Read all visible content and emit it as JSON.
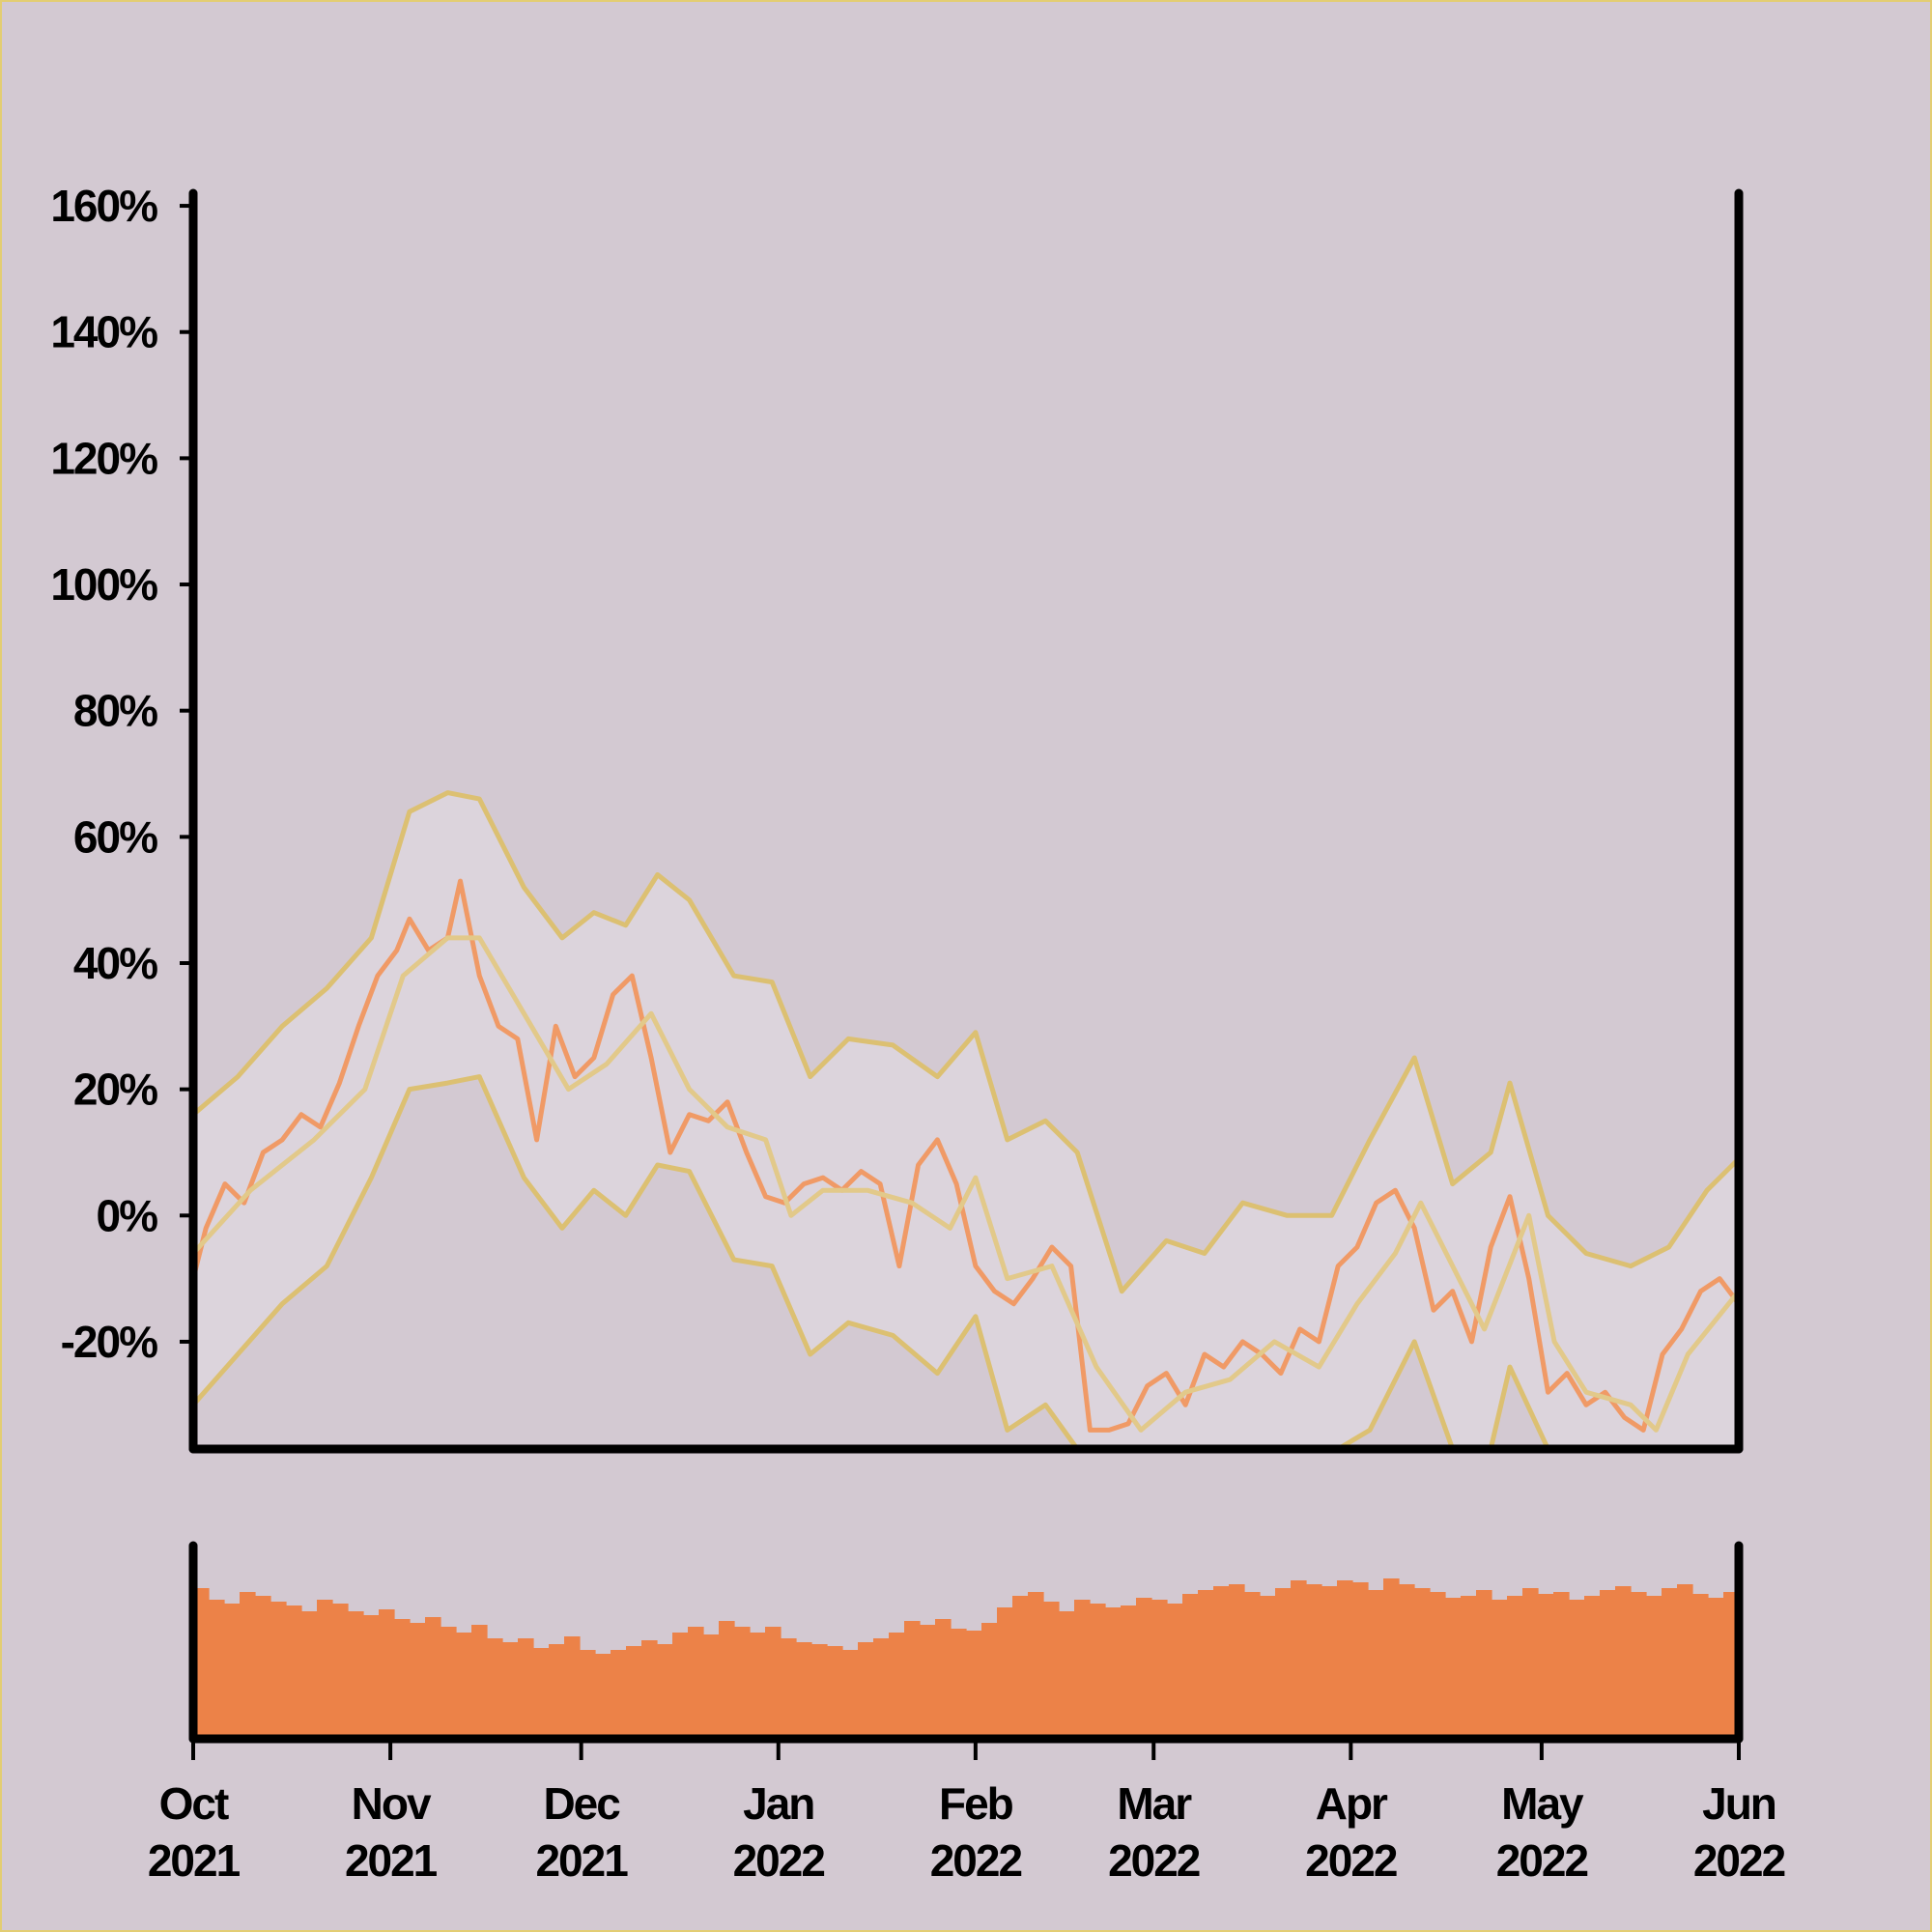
{
  "colors": {
    "background": "#d3c9d2",
    "frame": "#e3cd72",
    "price": "#f09a66",
    "band": "#dcc072",
    "band_fill": "#dcd4dc",
    "volume": "#ec8248",
    "axis": "#000000"
  },
  "chart_data": {
    "type": "line",
    "title": "",
    "xlabel": "",
    "ylabel": "",
    "ylim": [
      -0.37,
      1.62
    ],
    "y_ticks": [
      {
        "value": -0.2,
        "label": "-20%"
      },
      {
        "value": 0.0,
        "label": "0%"
      },
      {
        "value": 0.2,
        "label": "20%"
      },
      {
        "value": 0.4,
        "label": "40%"
      },
      {
        "value": 0.6,
        "label": "60%"
      },
      {
        "value": 0.8,
        "label": "80%"
      },
      {
        "value": 1.0,
        "label": "100%"
      },
      {
        "value": 1.2,
        "label": "120%"
      },
      {
        "value": 1.4,
        "label": "140%"
      },
      {
        "value": 1.6,
        "label": "160%"
      }
    ],
    "x_range": [
      "2021-10-01",
      "2022-06-01"
    ],
    "x_ticks": [
      {
        "date": "2021-10-01",
        "month": "Oct",
        "year": "2021"
      },
      {
        "date": "2021-11-01",
        "month": "Nov",
        "year": "2021"
      },
      {
        "date": "2021-12-01",
        "month": "Dec",
        "year": "2021"
      },
      {
        "date": "2022-01-01",
        "month": "Jan",
        "year": "2022"
      },
      {
        "date": "2022-02-01",
        "month": "Feb",
        "year": "2022"
      },
      {
        "date": "2022-03-01",
        "month": "Mar",
        "year": "2022"
      },
      {
        "date": "2022-04-01",
        "month": "Apr",
        "year": "2022"
      },
      {
        "date": "2022-05-01",
        "month": "May",
        "year": "2022"
      },
      {
        "date": "2022-06-01",
        "month": "Jun",
        "year": "2022"
      }
    ],
    "series": [
      {
        "role": "return",
        "points": [
          [
            "2021-10-01",
            -0.1
          ],
          [
            "2021-10-03",
            -0.02
          ],
          [
            "2021-10-06",
            0.05
          ],
          [
            "2021-10-09",
            0.02
          ],
          [
            "2021-10-12",
            0.1
          ],
          [
            "2021-10-15",
            0.12
          ],
          [
            "2021-10-18",
            0.16
          ],
          [
            "2021-10-21",
            0.14
          ],
          [
            "2021-10-24",
            0.21
          ],
          [
            "2021-10-27",
            0.3
          ],
          [
            "2021-10-30",
            0.38
          ],
          [
            "2021-11-02",
            0.42
          ],
          [
            "2021-11-04",
            0.47
          ],
          [
            "2021-11-07",
            0.42
          ],
          [
            "2021-11-10",
            0.44
          ],
          [
            "2021-11-12",
            0.53
          ],
          [
            "2021-11-15",
            0.38
          ],
          [
            "2021-11-18",
            0.3
          ],
          [
            "2021-11-21",
            0.28
          ],
          [
            "2021-11-24",
            0.12
          ],
          [
            "2021-11-27",
            0.3
          ],
          [
            "2021-11-30",
            0.22
          ],
          [
            "2021-12-03",
            0.25
          ],
          [
            "2021-12-06",
            0.35
          ],
          [
            "2021-12-09",
            0.38
          ],
          [
            "2021-12-12",
            0.25
          ],
          [
            "2021-12-15",
            0.1
          ],
          [
            "2021-12-18",
            0.16
          ],
          [
            "2021-12-21",
            0.15
          ],
          [
            "2021-12-24",
            0.18
          ],
          [
            "2021-12-27",
            0.1
          ],
          [
            "2021-12-30",
            0.03
          ],
          [
            "2022-01-02",
            0.02
          ],
          [
            "2022-01-05",
            0.05
          ],
          [
            "2022-01-08",
            0.06
          ],
          [
            "2022-01-11",
            0.04
          ],
          [
            "2022-01-14",
            0.07
          ],
          [
            "2022-01-17",
            0.05
          ],
          [
            "2022-01-20",
            -0.08
          ],
          [
            "2022-01-23",
            0.08
          ],
          [
            "2022-01-26",
            0.12
          ],
          [
            "2022-01-29",
            0.05
          ],
          [
            "2022-02-01",
            -0.08
          ],
          [
            "2022-02-04",
            -0.12
          ],
          [
            "2022-02-07",
            -0.14
          ],
          [
            "2022-02-10",
            -0.1
          ],
          [
            "2022-02-13",
            -0.05
          ],
          [
            "2022-02-16",
            -0.08
          ],
          [
            "2022-02-19",
            -0.34
          ],
          [
            "2022-02-22",
            -0.34
          ],
          [
            "2022-02-25",
            -0.33
          ],
          [
            "2022-02-28",
            -0.27
          ],
          [
            "2022-03-03",
            -0.25
          ],
          [
            "2022-03-06",
            -0.3
          ],
          [
            "2022-03-09",
            -0.22
          ],
          [
            "2022-03-12",
            -0.24
          ],
          [
            "2022-03-15",
            -0.2
          ],
          [
            "2022-03-18",
            -0.22
          ],
          [
            "2022-03-21",
            -0.25
          ],
          [
            "2022-03-24",
            -0.18
          ],
          [
            "2022-03-27",
            -0.2
          ],
          [
            "2022-03-30",
            -0.08
          ],
          [
            "2022-04-02",
            -0.05
          ],
          [
            "2022-04-05",
            0.02
          ],
          [
            "2022-04-08",
            0.04
          ],
          [
            "2022-04-11",
            -0.02
          ],
          [
            "2022-04-14",
            -0.15
          ],
          [
            "2022-04-17",
            -0.12
          ],
          [
            "2022-04-20",
            -0.2
          ],
          [
            "2022-04-23",
            -0.05
          ],
          [
            "2022-04-26",
            0.03
          ],
          [
            "2022-04-29",
            -0.1
          ],
          [
            "2022-05-02",
            -0.28
          ],
          [
            "2022-05-05",
            -0.25
          ],
          [
            "2022-05-08",
            -0.3
          ],
          [
            "2022-05-11",
            -0.28
          ],
          [
            "2022-05-14",
            -0.32
          ],
          [
            "2022-05-17",
            -0.34
          ],
          [
            "2022-05-20",
            -0.22
          ],
          [
            "2022-05-23",
            -0.18
          ],
          [
            "2022-05-26",
            -0.12
          ],
          [
            "2022-05-29",
            -0.1
          ],
          [
            "2022-06-01",
            -0.14
          ]
        ]
      },
      {
        "role": "moving-average",
        "points": [
          [
            "2021-10-01",
            -0.06
          ],
          [
            "2021-10-10",
            0.04
          ],
          [
            "2021-10-20",
            0.12
          ],
          [
            "2021-10-28",
            0.2
          ],
          [
            "2021-11-03",
            0.38
          ],
          [
            "2021-11-10",
            0.44
          ],
          [
            "2021-11-15",
            0.44
          ],
          [
            "2021-11-22",
            0.32
          ],
          [
            "2021-11-29",
            0.2
          ],
          [
            "2021-12-05",
            0.24
          ],
          [
            "2021-12-12",
            0.32
          ],
          [
            "2021-12-18",
            0.2
          ],
          [
            "2021-12-24",
            0.14
          ],
          [
            "2021-12-30",
            0.12
          ],
          [
            "2022-01-03",
            0.0
          ],
          [
            "2022-01-08",
            0.04
          ],
          [
            "2022-01-15",
            0.04
          ],
          [
            "2022-01-22",
            0.02
          ],
          [
            "2022-01-28",
            -0.02
          ],
          [
            "2022-02-01",
            0.06
          ],
          [
            "2022-02-06",
            -0.1
          ],
          [
            "2022-02-13",
            -0.08
          ],
          [
            "2022-02-20",
            -0.24
          ],
          [
            "2022-02-27",
            -0.34
          ],
          [
            "2022-03-06",
            -0.28
          ],
          [
            "2022-03-13",
            -0.26
          ],
          [
            "2022-03-20",
            -0.2
          ],
          [
            "2022-03-27",
            -0.24
          ],
          [
            "2022-04-02",
            -0.14
          ],
          [
            "2022-04-08",
            -0.06
          ],
          [
            "2022-04-12",
            0.02
          ],
          [
            "2022-04-18",
            -0.1
          ],
          [
            "2022-04-22",
            -0.18
          ],
          [
            "2022-04-29",
            0.0
          ],
          [
            "2022-05-03",
            -0.2
          ],
          [
            "2022-05-08",
            -0.28
          ],
          [
            "2022-05-15",
            -0.3
          ],
          [
            "2022-05-19",
            -0.34
          ],
          [
            "2022-05-24",
            -0.22
          ],
          [
            "2022-06-01",
            -0.12
          ]
        ]
      },
      {
        "role": "upper-band",
        "points": [
          [
            "2021-10-01",
            0.16
          ],
          [
            "2021-10-08",
            0.22
          ],
          [
            "2021-10-15",
            0.3
          ],
          [
            "2021-10-22",
            0.36
          ],
          [
            "2021-10-29",
            0.44
          ],
          [
            "2021-11-04",
            0.64
          ],
          [
            "2021-11-10",
            0.67
          ],
          [
            "2021-11-15",
            0.66
          ],
          [
            "2021-11-22",
            0.52
          ],
          [
            "2021-11-28",
            0.44
          ],
          [
            "2021-12-03",
            0.48
          ],
          [
            "2021-12-08",
            0.46
          ],
          [
            "2021-12-13",
            0.54
          ],
          [
            "2021-12-18",
            0.5
          ],
          [
            "2021-12-25",
            0.38
          ],
          [
            "2021-12-31",
            0.37
          ],
          [
            "2022-01-06",
            0.22
          ],
          [
            "2022-01-12",
            0.28
          ],
          [
            "2022-01-19",
            0.27
          ],
          [
            "2022-01-26",
            0.22
          ],
          [
            "2022-02-01",
            0.29
          ],
          [
            "2022-02-06",
            0.12
          ],
          [
            "2022-02-12",
            0.15
          ],
          [
            "2022-02-17",
            0.1
          ],
          [
            "2022-02-24",
            -0.12
          ],
          [
            "2022-03-03",
            -0.04
          ],
          [
            "2022-03-09",
            -0.06
          ],
          [
            "2022-03-15",
            0.02
          ],
          [
            "2022-03-22",
            0.0
          ],
          [
            "2022-03-29",
            0.0
          ],
          [
            "2022-04-04",
            0.12
          ],
          [
            "2022-04-11",
            0.25
          ],
          [
            "2022-04-17",
            0.05
          ],
          [
            "2022-04-23",
            0.1
          ],
          [
            "2022-04-26",
            0.21
          ],
          [
            "2022-05-02",
            0.0
          ],
          [
            "2022-05-08",
            -0.06
          ],
          [
            "2022-05-15",
            -0.08
          ],
          [
            "2022-05-21",
            -0.05
          ],
          [
            "2022-05-27",
            0.04
          ],
          [
            "2022-06-01",
            0.09
          ]
        ]
      },
      {
        "role": "lower-band",
        "points": [
          [
            "2021-10-01",
            -0.3
          ],
          [
            "2021-10-08",
            -0.22
          ],
          [
            "2021-10-15",
            -0.14
          ],
          [
            "2021-10-22",
            -0.08
          ],
          [
            "2021-10-29",
            0.06
          ],
          [
            "2021-11-04",
            0.2
          ],
          [
            "2021-11-10",
            0.21
          ],
          [
            "2021-11-15",
            0.22
          ],
          [
            "2021-11-22",
            0.06
          ],
          [
            "2021-11-28",
            -0.02
          ],
          [
            "2021-12-03",
            0.04
          ],
          [
            "2021-12-08",
            0.0
          ],
          [
            "2021-12-13",
            0.08
          ],
          [
            "2021-12-18",
            0.07
          ],
          [
            "2021-12-25",
            -0.07
          ],
          [
            "2021-12-31",
            -0.08
          ],
          [
            "2022-01-06",
            -0.22
          ],
          [
            "2022-01-12",
            -0.17
          ],
          [
            "2022-01-19",
            -0.19
          ],
          [
            "2022-01-26",
            -0.25
          ],
          [
            "2022-02-01",
            -0.16
          ],
          [
            "2022-02-06",
            -0.34
          ],
          [
            "2022-02-12",
            -0.3
          ],
          [
            "2022-02-17",
            -0.37
          ],
          [
            "2022-03-30",
            -0.37
          ],
          [
            "2022-04-04",
            -0.34
          ],
          [
            "2022-04-11",
            -0.2
          ],
          [
            "2022-04-17",
            -0.37
          ],
          [
            "2022-04-23",
            -0.37
          ],
          [
            "2022-04-26",
            -0.24
          ],
          [
            "2022-05-02",
            -0.37
          ],
          [
            "2022-06-01",
            -0.37
          ]
        ]
      }
    ],
    "volume": {
      "type": "bar",
      "values": [
        0.78,
        0.72,
        0.7,
        0.76,
        0.74,
        0.71,
        0.69,
        0.66,
        0.72,
        0.7,
        0.66,
        0.64,
        0.67,
        0.62,
        0.6,
        0.63,
        0.58,
        0.55,
        0.59,
        0.52,
        0.5,
        0.52,
        0.47,
        0.49,
        0.53,
        0.46,
        0.44,
        0.46,
        0.48,
        0.51,
        0.49,
        0.55,
        0.58,
        0.54,
        0.61,
        0.58,
        0.55,
        0.58,
        0.52,
        0.5,
        0.49,
        0.48,
        0.46,
        0.5,
        0.52,
        0.55,
        0.61,
        0.59,
        0.62,
        0.57,
        0.56,
        0.6,
        0.68,
        0.74,
        0.76,
        0.71,
        0.66,
        0.72,
        0.7,
        0.68,
        0.69,
        0.73,
        0.72,
        0.7,
        0.75,
        0.77,
        0.79,
        0.8,
        0.76,
        0.74,
        0.78,
        0.82,
        0.8,
        0.79,
        0.82,
        0.81,
        0.77,
        0.83,
        0.8,
        0.78,
        0.76,
        0.73,
        0.74,
        0.77,
        0.72,
        0.74,
        0.78,
        0.75,
        0.76,
        0.72,
        0.74,
        0.77,
        0.79,
        0.76,
        0.74,
        0.78,
        0.8,
        0.75,
        0.73,
        0.76
      ]
    }
  }
}
